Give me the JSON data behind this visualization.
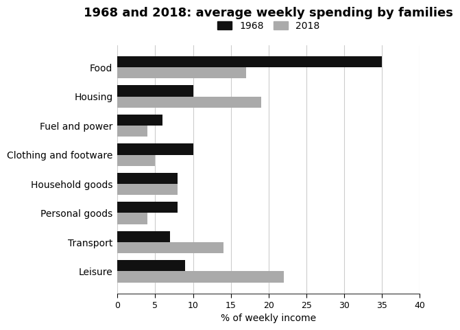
{
  "title": "1968 and 2018: average weekly spending by families",
  "categories": [
    "Food",
    "Housing",
    "Fuel and power",
    "Clothing and footware",
    "Household goods",
    "Personal goods",
    "Transport",
    "Leisure"
  ],
  "values_1968": [
    35,
    10,
    6,
    10,
    8,
    8,
    7,
    9
  ],
  "values_2018": [
    17,
    19,
    4,
    5,
    8,
    4,
    14,
    22
  ],
  "color_1968": "#111111",
  "color_2018": "#aaaaaa",
  "xlabel": "% of weekly income",
  "xlim": [
    0,
    40
  ],
  "xticks": [
    0,
    5,
    10,
    15,
    20,
    25,
    30,
    35,
    40
  ],
  "legend_labels": [
    "1968",
    "2018"
  ],
  "bar_height": 0.38,
  "grid_color": "#cccccc",
  "background_color": "#ffffff",
  "title_fontsize": 13,
  "label_fontsize": 10,
  "tick_fontsize": 9
}
